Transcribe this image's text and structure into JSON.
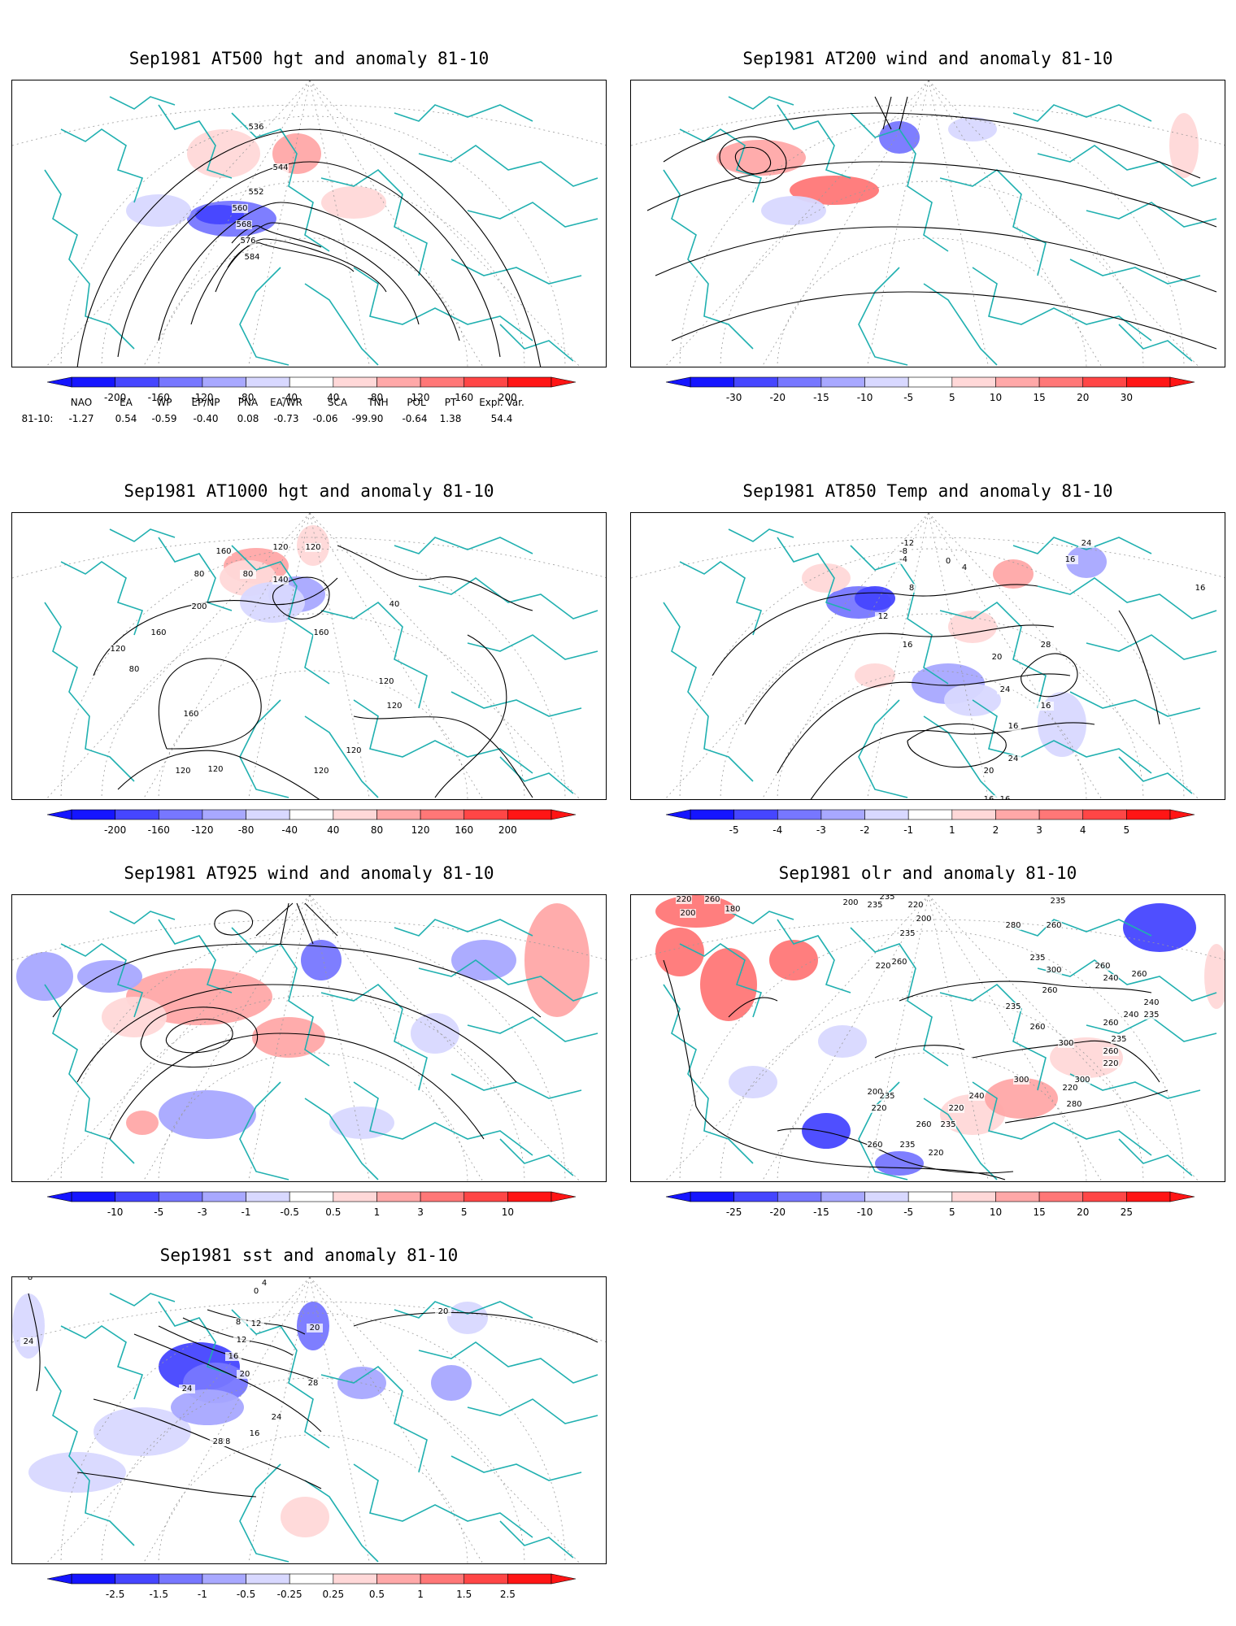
{
  "panels": [
    {
      "id": "p500",
      "title": "Sep1981 AT500 hgt and anomaly 81-10",
      "colorbar": {
        "labels": [
          "-200",
          "-160",
          "-120",
          "-80",
          "-40",
          "40",
          "80",
          "120",
          "160",
          "200"
        ],
        "colors": [
          "#1515ff",
          "#4646ff",
          "#7777ff",
          "#a8a8ff",
          "#d8d8ff",
          "#ffffff",
          "#ffd8d8",
          "#ffa8a8",
          "#ff7777",
          "#ff4646",
          "#ff1515"
        ]
      },
      "contour_labels": [
        "536",
        "544",
        "552",
        "560",
        "568",
        "576",
        "584"
      ]
    },
    {
      "id": "p200",
      "title": "Sep1981 AT200 wind and anomaly 81-10",
      "colorbar": {
        "labels": [
          "-30",
          "-20",
          "-15",
          "-10",
          "-5",
          "5",
          "10",
          "15",
          "20",
          "30"
        ],
        "colors": [
          "#1515ff",
          "#4646ff",
          "#7777ff",
          "#a8a8ff",
          "#d8d8ff",
          "#ffffff",
          "#ffd8d8",
          "#ffa8a8",
          "#ff7777",
          "#ff4646",
          "#ff1515"
        ]
      },
      "contour_labels": []
    },
    {
      "id": "p1000",
      "title": "Sep1981 AT1000 hgt and anomaly 81-10",
      "colorbar": {
        "labels": [
          "-200",
          "-160",
          "-120",
          "-80",
          "-40",
          "40",
          "80",
          "120",
          "160",
          "200"
        ],
        "colors": [
          "#1515ff",
          "#4646ff",
          "#7777ff",
          "#a8a8ff",
          "#d8d8ff",
          "#ffffff",
          "#ffd8d8",
          "#ffa8a8",
          "#ff7777",
          "#ff4646",
          "#ff1515"
        ]
      },
      "contour_labels": [
        "160",
        "80",
        "200",
        "120",
        "140",
        "80",
        "120",
        "160",
        "40",
        "160",
        "120",
        "80",
        "160",
        "120",
        "120",
        "120",
        "120",
        "120",
        "120"
      ]
    },
    {
      "id": "p850",
      "title": "Sep1981 AT850 Temp and anomaly 81-10",
      "colorbar": {
        "labels": [
          "-5",
          "-4",
          "-3",
          "-2",
          "-1",
          "1",
          "2",
          "3",
          "4",
          "5"
        ],
        "colors": [
          "#1515ff",
          "#4646ff",
          "#7777ff",
          "#a8a8ff",
          "#d8d8ff",
          "#ffffff",
          "#ffd8d8",
          "#ffa8a8",
          "#ff7777",
          "#ff4646",
          "#ff1515"
        ]
      },
      "contour_labels": [
        "-12",
        "-8",
        "-4",
        "0",
        "4",
        "24",
        "16",
        "16",
        "8",
        "12",
        "16",
        "28",
        "20",
        "24",
        "16",
        "16",
        "24",
        "20",
        "16",
        "16"
      ]
    },
    {
      "id": "p925",
      "title": "Sep1981 AT925 wind and anomaly 81-10",
      "colorbar": {
        "labels": [
          "-10",
          "-5",
          "-3",
          "-1",
          "-0.5",
          "0.5",
          "1",
          "3",
          "5",
          "10"
        ],
        "colors": [
          "#1515ff",
          "#4646ff",
          "#7777ff",
          "#a8a8ff",
          "#d8d8ff",
          "#ffffff",
          "#ffd8d8",
          "#ffa8a8",
          "#ff7777",
          "#ff4646",
          "#ff1515"
        ]
      },
      "contour_labels": []
    },
    {
      "id": "polr",
      "title": "Sep1981 olr and anomaly 81-10",
      "colorbar": {
        "labels": [
          "-25",
          "-20",
          "-15",
          "-10",
          "-5",
          "5",
          "10",
          "15",
          "20",
          "25"
        ],
        "colors": [
          "#1515ff",
          "#4646ff",
          "#7777ff",
          "#a8a8ff",
          "#d8d8ff",
          "#ffffff",
          "#ffd8d8",
          "#ffa8a8",
          "#ff7777",
          "#ff4646",
          "#ff1515"
        ]
      },
      "contour_labels": [
        "220",
        "260",
        "200",
        "180",
        "200",
        "235",
        "235",
        "200",
        "220",
        "235",
        "260",
        "220",
        "280",
        "235",
        "260",
        "235",
        "300",
        "260",
        "240",
        "235",
        "260",
        "240",
        "260",
        "300",
        "260",
        "235",
        "260",
        "220",
        "240",
        "235",
        "260",
        "300",
        "220",
        "280",
        "300",
        "240",
        "220",
        "235",
        "260",
        "200",
        "235",
        "220",
        "235",
        "260",
        "220"
      ]
    },
    {
      "id": "psst",
      "title": "Sep1981 sst and anomaly 81-10",
      "colorbar": {
        "labels": [
          "-2.5",
          "-1.5",
          "-1",
          "-0.5",
          "-0.25",
          "0.25",
          "0.5",
          "1",
          "1.5",
          "2.5"
        ],
        "colors": [
          "#1515ff",
          "#4646ff",
          "#7777ff",
          "#a8a8ff",
          "#d8d8ff",
          "#ffffff",
          "#ffd8d8",
          "#ffa8a8",
          "#ff7777",
          "#ff4646",
          "#ff1515"
        ]
      },
      "contour_labels": [
        "8",
        "24",
        "0",
        "4",
        "12",
        "8",
        "12",
        "16",
        "20",
        "20",
        "24",
        "16",
        "24",
        "28",
        "28",
        "28",
        "20"
      ]
    }
  ],
  "teleconnections": {
    "headers": [
      "NAO",
      "EA",
      "WP",
      "EP/NP",
      "PNA",
      "EA/WR",
      "SCA",
      "TNH",
      "POL",
      "PT",
      "Expl. Var."
    ],
    "row_label": "81-10:",
    "values": [
      "-1.27",
      "0.54",
      "-0.59",
      "-0.40",
      "0.08",
      "-0.73",
      "-0.06",
      "-99.90",
      "-0.64",
      "1.38",
      "54.4"
    ]
  },
  "colors": {
    "coastline": "#20b0b0",
    "contour": "#000000",
    "grid": "#9a9a9a"
  }
}
